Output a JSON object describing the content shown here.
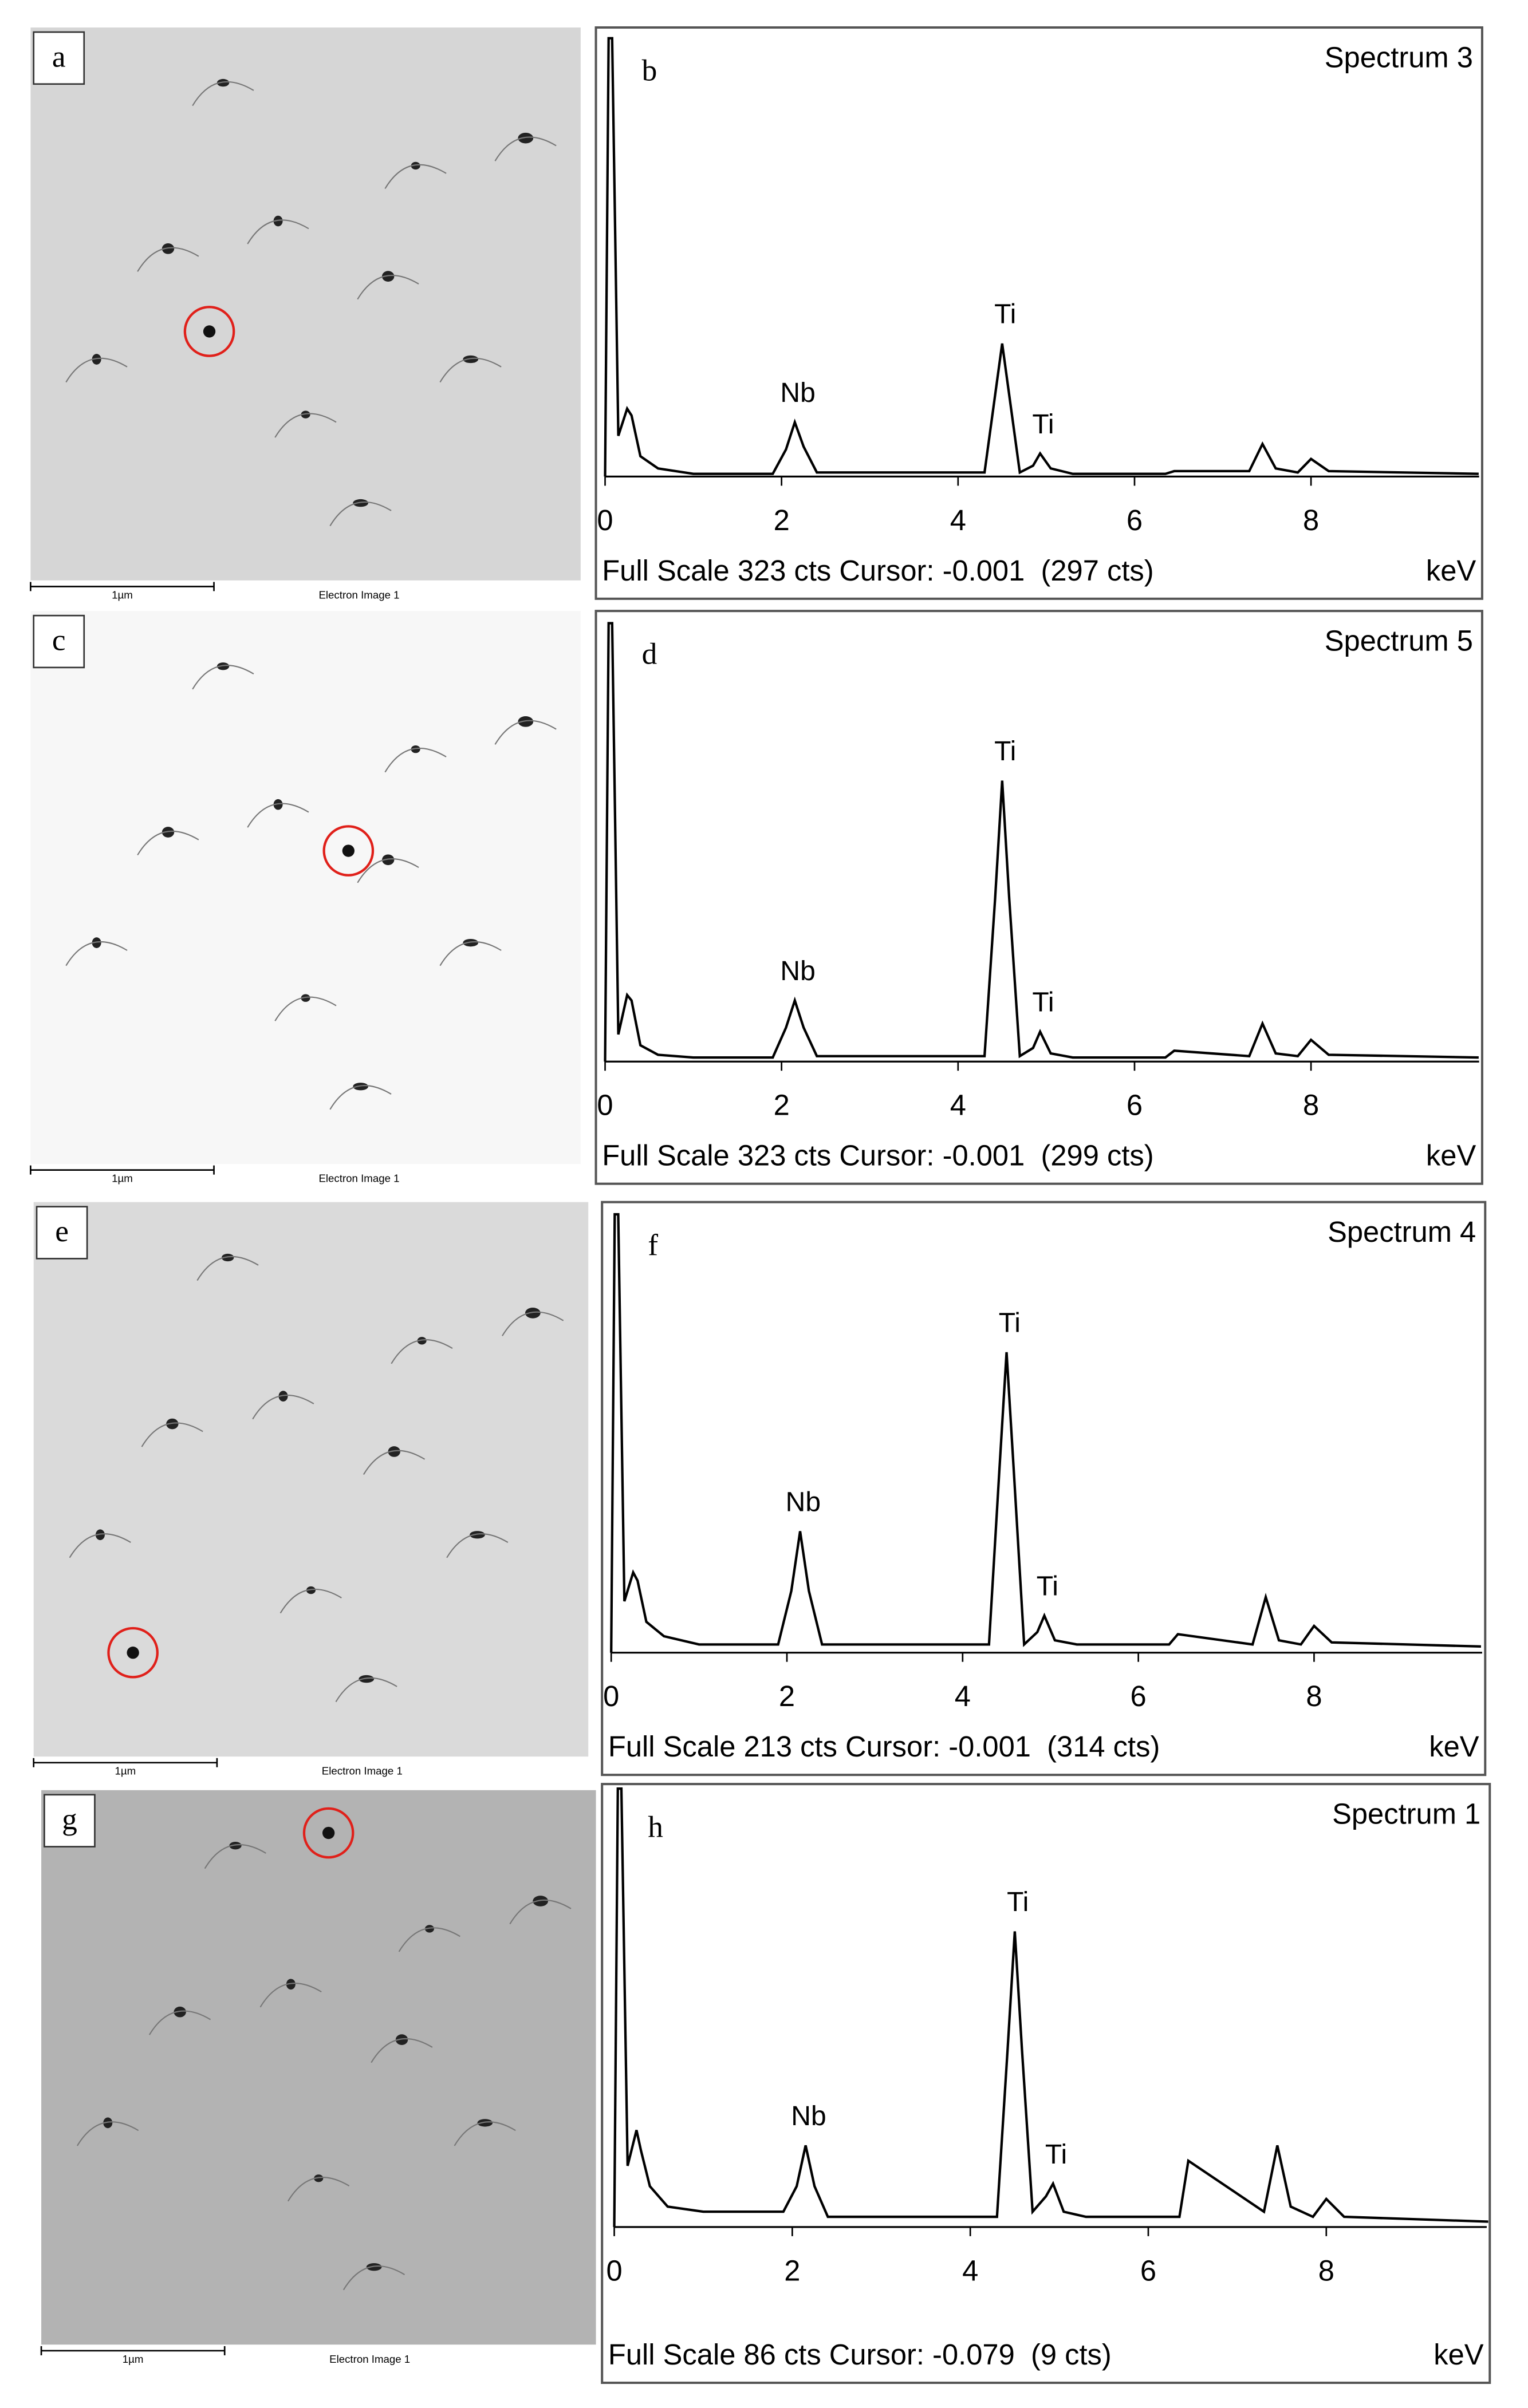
{
  "images": [
    {
      "label": "a",
      "scale_bar": "1µm",
      "caption": "Electron Image 1"
    },
    {
      "label": "c",
      "scale_bar": "1µm",
      "caption": "Electron Image 1"
    },
    {
      "label": "e",
      "scale_bar": "1µm",
      "caption": "Electron Image 1"
    },
    {
      "label": "g",
      "scale_bar": "1µm",
      "caption": "Electron Image 1"
    }
  ],
  "chart_data": [
    {
      "type": "line",
      "panel_label": "b",
      "title": "Spectrum 3",
      "footer": "Full Scale 323 cts Cursor: -0.001  (297 cts)",
      "x_label": "keV",
      "xlim": [
        0,
        9.9
      ],
      "ylim": [
        0,
        323
      ],
      "xticks": [
        0,
        2,
        4,
        6,
        8
      ],
      "color": "#000000",
      "x": [
        0,
        0.04,
        0.08,
        0.15,
        0.25,
        0.3,
        0.4,
        0.6,
        1.0,
        1.9,
        2.05,
        2.15,
        2.25,
        2.4,
        4.3,
        4.42,
        4.5,
        4.58,
        4.7,
        4.85,
        4.93,
        5.05,
        5.3,
        6.35,
        6.45,
        7.3,
        7.45,
        7.6,
        7.85,
        8.0,
        8.2,
        9.9
      ],
      "values": [
        0,
        323,
        323,
        30,
        50,
        45,
        15,
        6,
        2,
        2,
        20,
        40,
        22,
        3,
        3,
        60,
        98,
        60,
        3,
        8,
        17,
        6,
        2,
        2,
        4,
        4,
        24,
        6,
        3,
        13,
        4,
        2
      ],
      "annotations": [
        {
          "text": "Nb",
          "x": 2.15
        },
        {
          "text": "Ti",
          "x": 4.5
        },
        {
          "text": "Ti",
          "x": 4.93
        }
      ]
    },
    {
      "type": "line",
      "panel_label": "d",
      "title": "Spectrum 5",
      "footer": "Full Scale 323 cts Cursor: -0.001  (299 cts)",
      "x_label": "keV",
      "xlim": [
        0,
        9.9
      ],
      "ylim": [
        0,
        323
      ],
      "xticks": [
        0,
        2,
        4,
        6,
        8
      ],
      "color": "#000000",
      "x": [
        0,
        0.04,
        0.08,
        0.15,
        0.25,
        0.3,
        0.4,
        0.6,
        1.0,
        1.9,
        2.05,
        2.15,
        2.25,
        2.4,
        4.3,
        4.42,
        4.5,
        4.58,
        4.7,
        4.85,
        4.93,
        5.05,
        5.3,
        6.35,
        6.45,
        7.3,
        7.45,
        7.6,
        7.85,
        8.0,
        8.2,
        9.9
      ],
      "values": [
        0,
        323,
        323,
        20,
        49,
        45,
        12,
        5,
        3,
        3,
        25,
        45,
        25,
        4,
        4,
        120,
        207,
        120,
        4,
        10,
        22,
        6,
        3,
        3,
        8,
        4,
        28,
        6,
        4,
        16,
        5,
        3
      ],
      "annotations": [
        {
          "text": "Nb",
          "x": 2.15
        },
        {
          "text": "Ti",
          "x": 4.5
        },
        {
          "text": "Ti",
          "x": 4.93
        }
      ]
    },
    {
      "type": "line",
      "panel_label": "f",
      "title": "Spectrum 4",
      "footer": "Full Scale 213 cts Cursor: -0.001  (314 cts)",
      "x_label": "keV",
      "xlim": [
        0,
        9.9
      ],
      "ylim": [
        0,
        213
      ],
      "xticks": [
        0,
        2,
        4,
        6,
        8
      ],
      "color": "#000000",
      "x": [
        0,
        0.04,
        0.08,
        0.15,
        0.25,
        0.3,
        0.4,
        0.6,
        1.0,
        1.9,
        2.05,
        2.15,
        2.25,
        2.4,
        4.3,
        4.42,
        4.5,
        4.58,
        4.7,
        4.85,
        4.93,
        5.05,
        5.3,
        6.35,
        6.45,
        7.3,
        7.45,
        7.6,
        7.85,
        8.0,
        8.2,
        9.9
      ],
      "values": [
        0,
        213,
        213,
        25,
        39,
        35,
        15,
        8,
        4,
        4,
        30,
        59,
        30,
        4,
        4,
        90,
        146,
        90,
        4,
        10,
        18,
        6,
        4,
        4,
        9,
        4,
        27,
        6,
        4,
        13,
        5,
        3
      ],
      "annotations": [
        {
          "text": "Nb",
          "x": 2.15
        },
        {
          "text": "Ti",
          "x": 4.5
        },
        {
          "text": "Ti",
          "x": 4.93
        }
      ]
    },
    {
      "type": "line",
      "panel_label": "h",
      "title": "Spectrum 1",
      "footer": "Full Scale 86 cts Cursor: -0.079  (9 cts)",
      "x_label": "keV",
      "xlim": [
        0,
        9.9
      ],
      "ylim": [
        0,
        86
      ],
      "xticks": [
        0,
        2,
        4,
        6,
        8
      ],
      "color": "#000000",
      "x": [
        0,
        0.04,
        0.08,
        0.15,
        0.25,
        0.3,
        0.4,
        0.6,
        1.0,
        1.9,
        2.05,
        2.15,
        2.25,
        2.4,
        4.3,
        4.42,
        4.5,
        4.58,
        4.7,
        4.85,
        4.93,
        5.05,
        5.3,
        6.35,
        6.45,
        7.3,
        7.45,
        7.6,
        7.85,
        8.0,
        8.2,
        9.9
      ],
      "values": [
        0,
        86,
        86,
        12,
        19,
        15,
        8,
        4,
        3,
        3,
        8,
        16,
        8,
        2,
        2,
        35,
        58,
        35,
        3,
        6,
        8.5,
        3,
        2,
        2,
        13,
        3,
        16,
        4,
        2,
        5.5,
        2,
        1
      ],
      "annotations": [
        {
          "text": "Nb",
          "x": 2.15
        },
        {
          "text": "Ti",
          "x": 4.5
        },
        {
          "text": "Ti",
          "x": 4.93
        }
      ]
    }
  ]
}
